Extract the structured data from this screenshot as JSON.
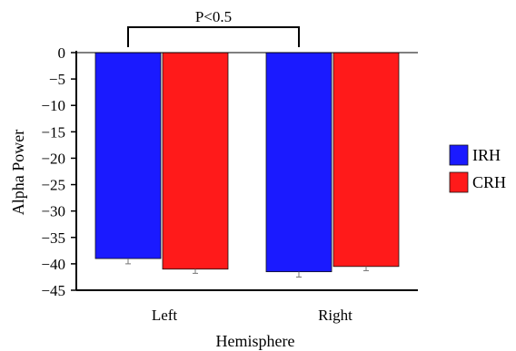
{
  "chart_data": {
    "type": "bar",
    "categories": [
      "Left",
      "Right"
    ],
    "series": [
      {
        "name": "IRH",
        "values": [
          -39.0,
          -41.5
        ],
        "errors": [
          1.0,
          1.0
        ],
        "color": "#1a1aff"
      },
      {
        "name": "CRH",
        "values": [
          -41.0,
          -40.5
        ],
        "errors": [
          0.8,
          0.8
        ],
        "color": "#ff1a1a"
      }
    ],
    "title": "",
    "xlabel": "Hemisphere",
    "ylabel": "Alpha Power",
    "ylim": [
      -45,
      0
    ],
    "yticks": [
      0,
      -5,
      -10,
      -15,
      -20,
      -25,
      -30,
      -35,
      -40,
      -45
    ],
    "grid": false,
    "legend_position": "right",
    "annotation": {
      "text": "P<0.5",
      "between": [
        "IRH Left",
        "IRH Right"
      ]
    }
  }
}
